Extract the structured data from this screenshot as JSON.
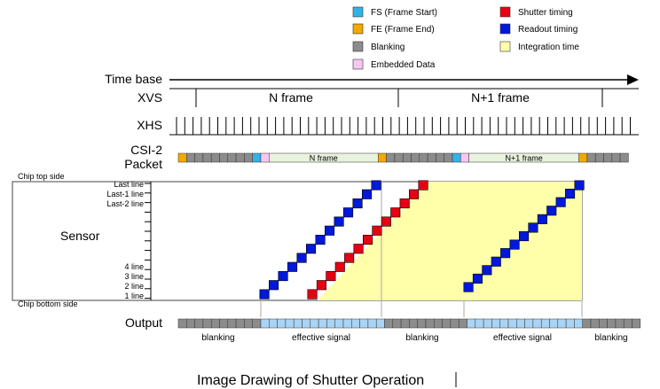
{
  "legend": [
    {
      "label": "FS (Frame Start)",
      "color": "#33b2e6",
      "icon": "fs-swatch"
    },
    {
      "label": "FE (Frame End)",
      "color": "#f2a900",
      "icon": "fe-swatch"
    },
    {
      "label": "Blanking",
      "color": "#8c8c8c",
      "icon": "blanking-swatch"
    },
    {
      "label": "Embedded Data",
      "color": "#f7c6f2",
      "icon": "embedded-swatch"
    },
    {
      "label": "Shutter timing",
      "color": "#e60012",
      "icon": "shutter-swatch"
    },
    {
      "label": "Readout timing",
      "color": "#0018d9",
      "icon": "readout-swatch"
    },
    {
      "label": "Integration time",
      "color": "#ffffaa",
      "icon": "integration-swatch"
    }
  ],
  "labels": {
    "time_base": "Time base",
    "xvs": "XVS",
    "xhs": "XHS",
    "csi2_line1": "CSI-2",
    "csi2_line2": "Packet",
    "chip_top": "Chip top side",
    "chip_bottom": "Chip bottom side",
    "sensor": "Sensor",
    "output": "Output",
    "n_frame": "N frame",
    "n1_frame": "N+1 frame",
    "packet_n_frame": "N frame",
    "packet_n1_frame": "N+1 frame"
  },
  "line_labels": {
    "top": [
      "Last line",
      "Last-1 line",
      "Last-2 line"
    ],
    "bottom": [
      "4 line",
      "3 line",
      "2 line",
      "1 line"
    ]
  },
  "output_segments": [
    "blanking",
    "effective signal",
    "blanking",
    "effective signal",
    "blanking"
  ],
  "caption": "Image Drawing of Shutter Operation",
  "colors": {
    "fs": "#33b2e6",
    "fe": "#f2a900",
    "blanking": "#8c8c8c",
    "embedded": "#f7c6f2",
    "shutter": "#e60012",
    "readout": "#0018d9",
    "integration": "#ffffaa",
    "frame_fill": "#e8f2dc",
    "effective_fill": "#a9d4f5"
  }
}
